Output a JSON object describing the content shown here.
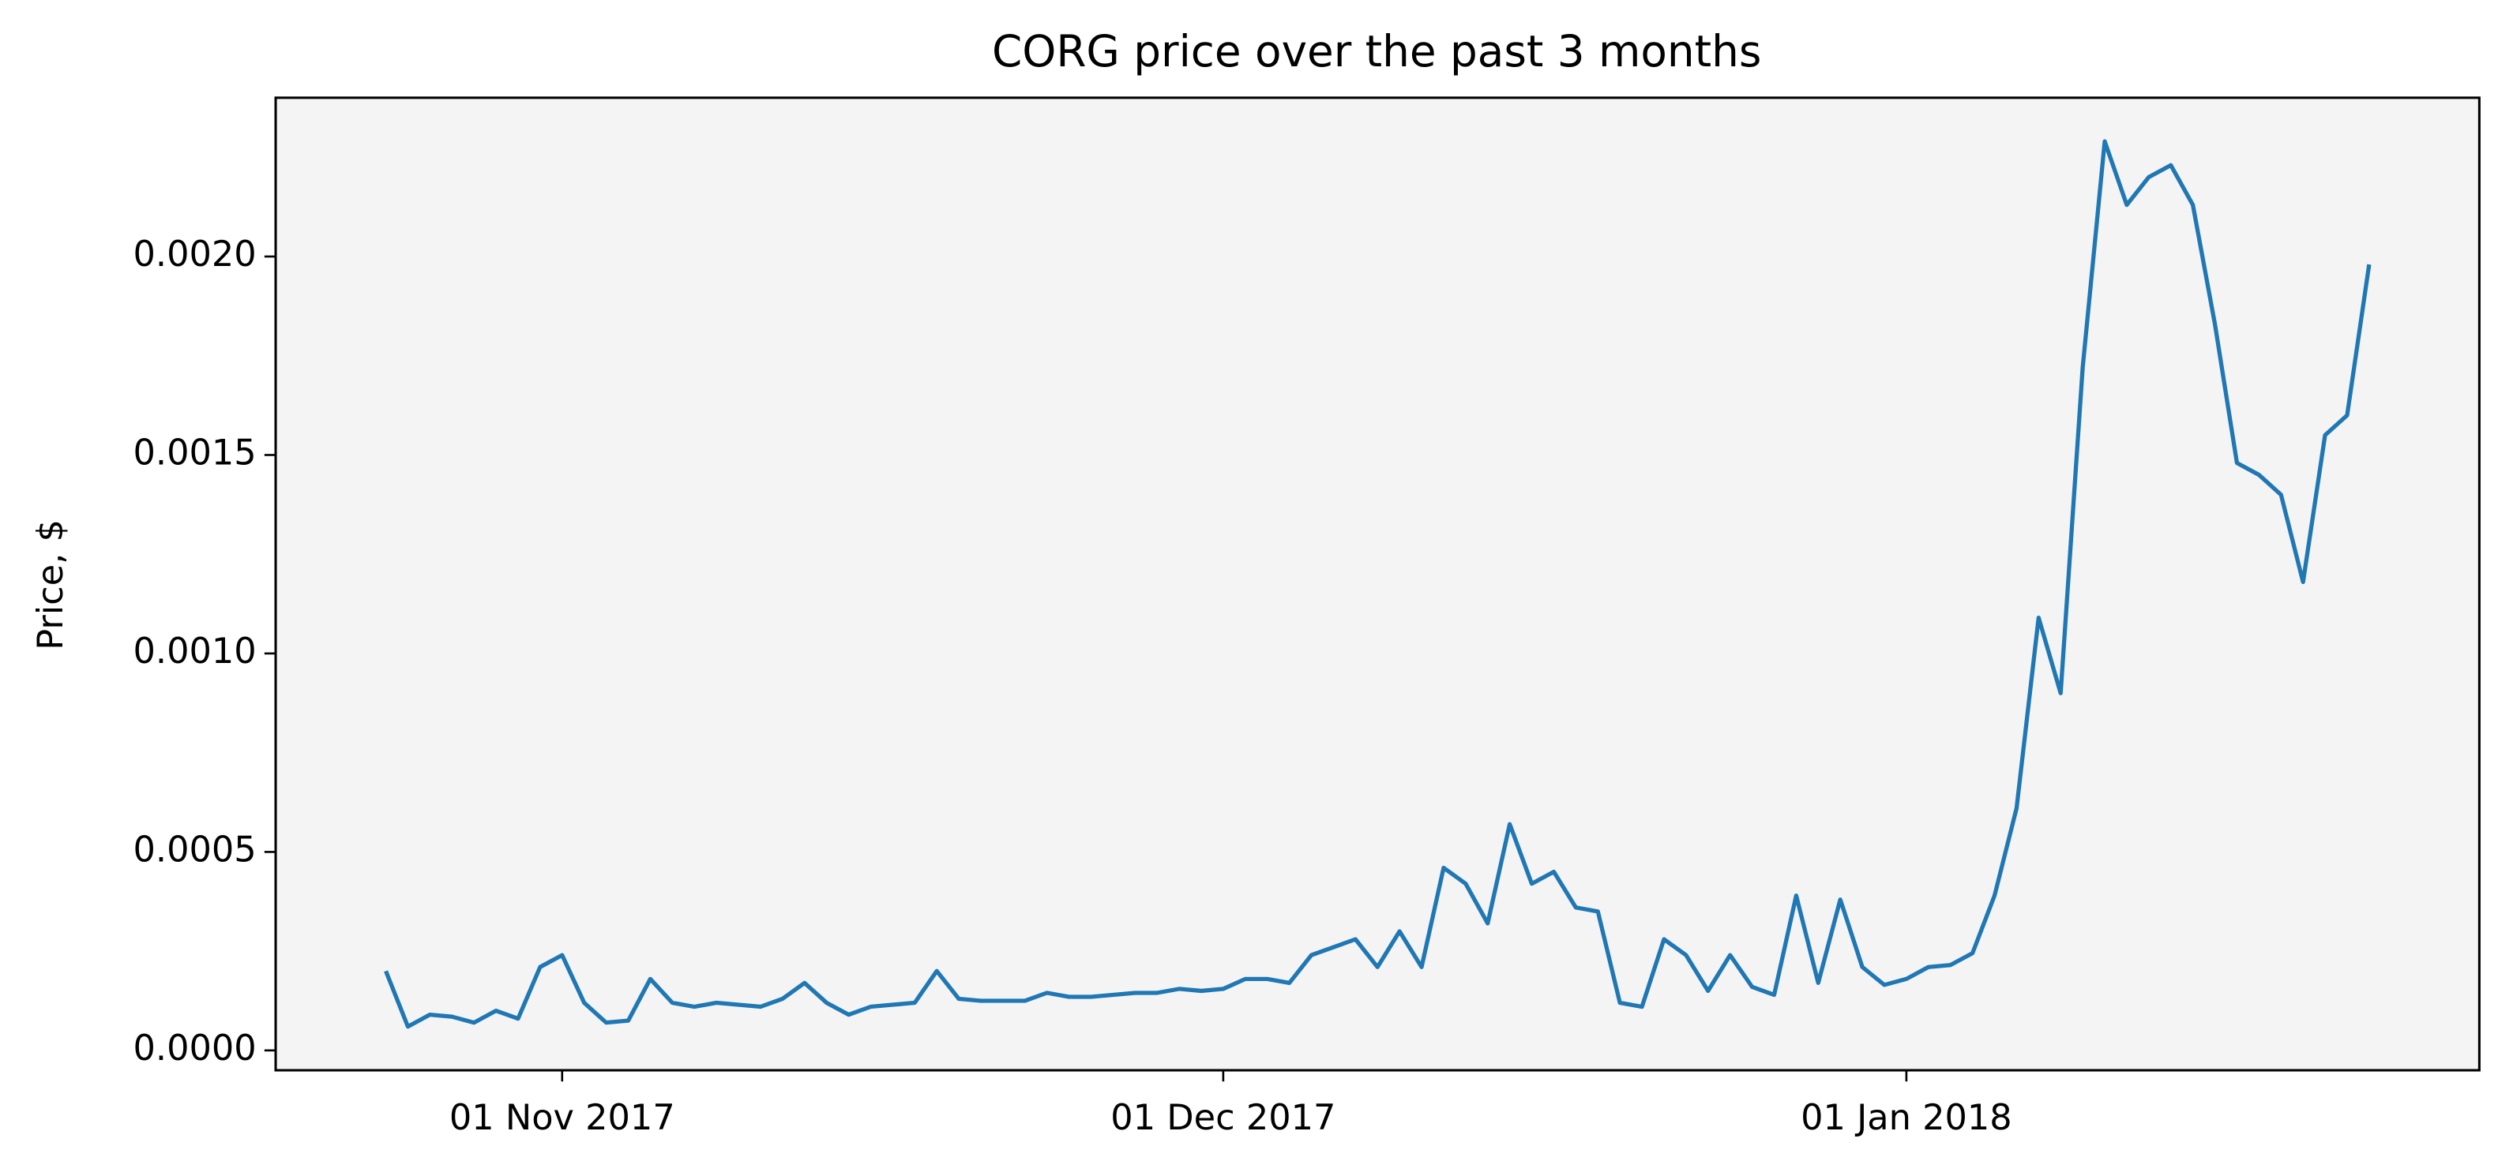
{
  "chart_data": {
    "type": "line",
    "title": "CORG price over the past 3 months",
    "ylabel": "Price, $",
    "x": [
      "2017-10-24",
      "2017-10-25",
      "2017-10-26",
      "2017-10-27",
      "2017-10-28",
      "2017-10-29",
      "2017-10-30",
      "2017-10-31",
      "2017-11-01",
      "2017-11-02",
      "2017-11-03",
      "2017-11-04",
      "2017-11-05",
      "2017-11-06",
      "2017-11-07",
      "2017-11-08",
      "2017-11-09",
      "2017-11-10",
      "2017-11-11",
      "2017-11-12",
      "2017-11-13",
      "2017-11-14",
      "2017-11-15",
      "2017-11-16",
      "2017-11-17",
      "2017-11-18",
      "2017-11-19",
      "2017-11-20",
      "2017-11-21",
      "2017-11-22",
      "2017-11-23",
      "2017-11-24",
      "2017-11-25",
      "2017-11-26",
      "2017-11-27",
      "2017-11-28",
      "2017-11-29",
      "2017-11-30",
      "2017-12-01",
      "2017-12-02",
      "2017-12-03",
      "2017-12-04",
      "2017-12-05",
      "2017-12-06",
      "2017-12-07",
      "2017-12-08",
      "2017-12-09",
      "2017-12-10",
      "2017-12-11",
      "2017-12-12",
      "2017-12-13",
      "2017-12-14",
      "2017-12-15",
      "2017-12-16",
      "2017-12-17",
      "2017-12-18",
      "2017-12-19",
      "2017-12-20",
      "2017-12-21",
      "2017-12-22",
      "2017-12-23",
      "2017-12-24",
      "2017-12-25",
      "2017-12-26",
      "2017-12-27",
      "2017-12-28",
      "2017-12-29",
      "2017-12-30",
      "2017-12-31",
      "2018-01-01",
      "2018-01-02",
      "2018-01-03",
      "2018-01-04",
      "2018-01-05",
      "2018-01-06",
      "2018-01-07",
      "2018-01-08",
      "2018-01-09",
      "2018-01-10",
      "2018-01-11",
      "2018-01-12",
      "2018-01-13",
      "2018-01-14",
      "2018-01-15",
      "2018-01-16",
      "2018-01-17",
      "2018-01-18",
      "2018-01-19",
      "2018-01-20",
      "2018-01-21",
      "2018-01-22"
    ],
    "values": [
      0.0002,
      6e-05,
      9e-05,
      8.5e-05,
      7e-05,
      0.0001,
      8e-05,
      0.00021,
      0.00024,
      0.00012,
      7e-05,
      7.5e-05,
      0.00018,
      0.00012,
      0.00011,
      0.00012,
      0.000115,
      0.00011,
      0.00013,
      0.00017,
      0.00012,
      9e-05,
      0.00011,
      0.000115,
      0.00012,
      0.0002,
      0.00013,
      0.000125,
      0.000125,
      0.000125,
      0.000145,
      0.000135,
      0.000135,
      0.00014,
      0.000145,
      0.000145,
      0.000155,
      0.00015,
      0.000155,
      0.00018,
      0.00018,
      0.00017,
      0.00024,
      0.00026,
      0.00028,
      0.00021,
      0.0003,
      0.00021,
      0.00046,
      0.00042,
      0.00032,
      0.00057,
      0.00042,
      0.00045,
      0.00036,
      0.00035,
      0.00012,
      0.00011,
      0.00028,
      0.00024,
      0.00015,
      0.00024,
      0.00016,
      0.00014,
      0.00039,
      0.00017,
      0.00038,
      0.00021,
      0.000165,
      0.00018,
      0.00021,
      0.000215,
      0.000245,
      0.00039,
      0.00061,
      0.00109,
      0.0009,
      0.00172,
      0.00229,
      0.00213,
      0.0022,
      0.00223,
      0.00213,
      0.00183,
      0.00148,
      0.00145,
      0.0014,
      0.00118,
      0.00155,
      0.0016,
      0.00198
    ],
    "color": "#1f77b4",
    "xlim": [
      "2017-10-19",
      "2018-01-27"
    ],
    "xticks": [
      {
        "value": "2017-11-01",
        "label": "01 Nov 2017"
      },
      {
        "value": "2017-12-01",
        "label": "01 Dec 2017"
      },
      {
        "value": "2018-01-01",
        "label": "01 Jan 2018"
      }
    ],
    "ylim": [
      -5e-05,
      0.0024
    ],
    "yticks": [
      {
        "value": 0,
        "label": "0.0000"
      },
      {
        "value": 0.0005,
        "label": "0.0005"
      },
      {
        "value": 0.001,
        "label": "0.0010"
      },
      {
        "value": 0.0015,
        "label": "0.0015"
      },
      {
        "value": 0.002,
        "label": "0.0020"
      }
    ],
    "grid": false
  }
}
